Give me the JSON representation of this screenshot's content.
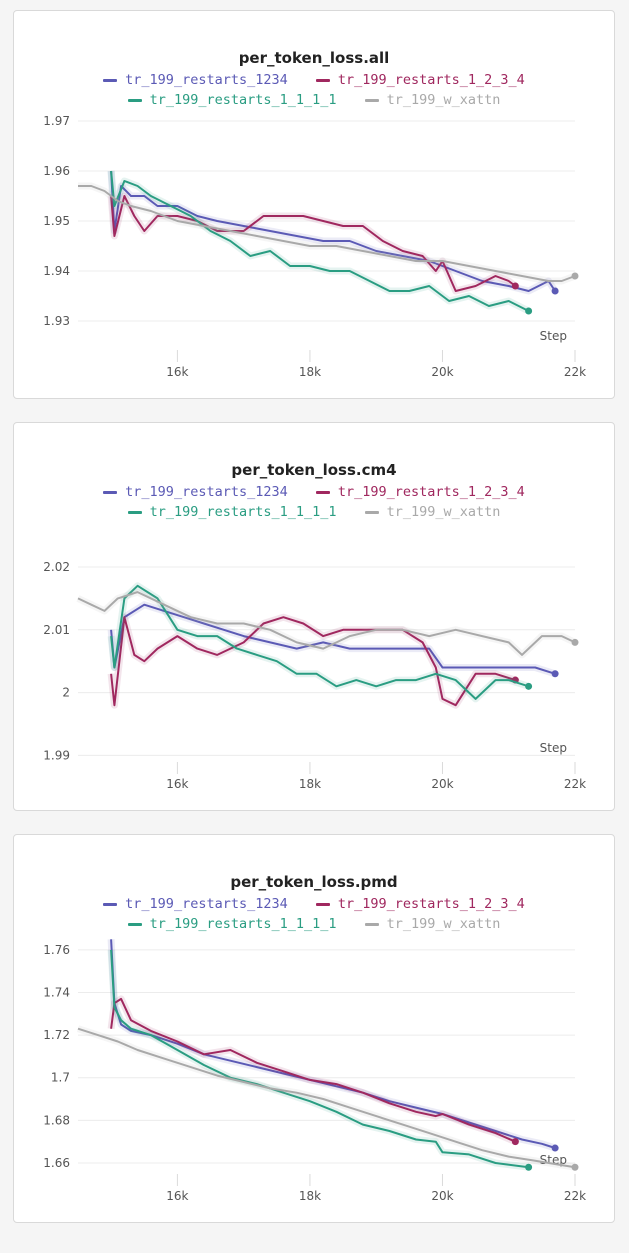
{
  "legend": [
    {
      "label": "tr_199_restarts_1234",
      "color": "#5b5ab5"
    },
    {
      "label": "tr_199_restarts_1_2_3_4",
      "color": "#a0285f"
    },
    {
      "label": "tr_199_restarts_1_1_1_1",
      "color": "#2a9d82"
    },
    {
      "label": "tr_199_w_xattn",
      "color": "#a9a9a9"
    }
  ],
  "x_axis_label": "Step",
  "panels": [
    {
      "title": "per_token_loss.all"
    },
    {
      "title": "per_token_loss.cm4"
    },
    {
      "title": "per_token_loss.pmd"
    }
  ],
  "chart_data": [
    {
      "type": "line",
      "title": "per_token_loss.all",
      "xlabel": "Step",
      "ylabel": "",
      "xlim": [
        14500,
        22000
      ],
      "ylim": [
        1.923,
        1.972
      ],
      "x_ticks": [
        16000,
        18000,
        20000,
        22000
      ],
      "x_tick_labels": [
        "16k",
        "18k",
        "20k",
        "22k"
      ],
      "y_ticks": [
        1.93,
        1.94,
        1.95,
        1.96,
        1.97
      ],
      "y_tick_labels": [
        "1.93",
        "1.94",
        "1.95",
        "1.96",
        "1.97"
      ],
      "grid": true,
      "legend_position": "top",
      "series": [
        {
          "name": "tr_199_restarts_1234",
          "color": "#5b5ab5",
          "x": [
            15000,
            15050,
            15150,
            15300,
            15500,
            15700,
            16000,
            16300,
            16600,
            17000,
            17400,
            17800,
            18200,
            18600,
            19000,
            19400,
            19800,
            20200,
            20600,
            21000,
            21300,
            21600,
            21700
          ],
          "y": [
            1.96,
            1.948,
            1.957,
            1.955,
            1.955,
            1.953,
            1.953,
            1.951,
            1.95,
            1.949,
            1.948,
            1.947,
            1.946,
            1.946,
            1.944,
            1.943,
            1.942,
            1.94,
            1.938,
            1.937,
            1.936,
            1.938,
            1.936
          ]
        },
        {
          "name": "tr_199_restarts_1_2_3_4",
          "color": "#a0285f",
          "x": [
            15000,
            15050,
            15200,
            15350,
            15500,
            15700,
            16000,
            16300,
            16600,
            17000,
            17300,
            17600,
            17900,
            18200,
            18500,
            18800,
            19100,
            19400,
            19700,
            19900,
            20000,
            20200,
            20500,
            20800,
            21000,
            21100
          ],
          "y": [
            1.955,
            1.947,
            1.955,
            1.951,
            1.948,
            1.951,
            1.951,
            1.95,
            1.948,
            1.948,
            1.951,
            1.951,
            1.951,
            1.95,
            1.949,
            1.949,
            1.946,
            1.944,
            1.943,
            1.94,
            1.942,
            1.936,
            1.937,
            1.939,
            1.938,
            1.937
          ]
        },
        {
          "name": "tr_199_restarts_1_1_1_1",
          "color": "#2a9d82",
          "x": [
            15000,
            15050,
            15200,
            15400,
            15600,
            15900,
            16200,
            16500,
            16800,
            17100,
            17400,
            17700,
            18000,
            18300,
            18600,
            18900,
            19200,
            19500,
            19800,
            20100,
            20400,
            20700,
            21000,
            21300
          ],
          "y": [
            1.96,
            1.953,
            1.958,
            1.957,
            1.955,
            1.953,
            1.951,
            1.948,
            1.946,
            1.943,
            1.944,
            1.941,
            1.941,
            1.94,
            1.94,
            1.938,
            1.936,
            1.936,
            1.937,
            1.934,
            1.935,
            1.933,
            1.934,
            1.932
          ]
        },
        {
          "name": "tr_199_w_xattn",
          "color": "#a9a9a9",
          "x": [
            14500,
            14700,
            14900,
            15100,
            15300,
            15600,
            16000,
            16400,
            16800,
            17200,
            17600,
            18000,
            18400,
            18800,
            19200,
            19600,
            20000,
            20400,
            20800,
            21200,
            21600,
            21800,
            22000
          ],
          "y": [
            1.957,
            1.957,
            1.956,
            1.954,
            1.953,
            1.952,
            1.95,
            1.949,
            1.948,
            1.947,
            1.946,
            1.945,
            1.945,
            1.944,
            1.943,
            1.942,
            1.942,
            1.941,
            1.94,
            1.939,
            1.938,
            1.938,
            1.939
          ]
        }
      ]
    },
    {
      "type": "line",
      "title": "per_token_loss.cm4",
      "xlabel": "Step",
      "ylabel": "",
      "xlim": [
        14500,
        22000
      ],
      "ylim": [
        1.988,
        2.027
      ],
      "x_ticks": [
        16000,
        18000,
        20000,
        22000
      ],
      "x_tick_labels": [
        "16k",
        "18k",
        "20k",
        "22k"
      ],
      "y_ticks": [
        1.99,
        2.0,
        2.01,
        2.02
      ],
      "y_tick_labels": [
        "1.99",
        "2",
        "2.01",
        "2.02"
      ],
      "grid": true,
      "legend_position": "top",
      "series": [
        {
          "name": "tr_199_restarts_1234",
          "color": "#5b5ab5",
          "x": [
            15000,
            15050,
            15200,
            15500,
            15800,
            16100,
            16400,
            16700,
            17000,
            17400,
            17800,
            18200,
            18600,
            19000,
            19400,
            19800,
            20000,
            20300,
            20600,
            21000,
            21400,
            21700
          ],
          "y": [
            2.01,
            2.004,
            2.012,
            2.014,
            2.013,
            2.012,
            2.011,
            2.01,
            2.009,
            2.008,
            2.007,
            2.008,
            2.007,
            2.007,
            2.007,
            2.007,
            2.004,
            2.004,
            2.004,
            2.004,
            2.004,
            2.003
          ]
        },
        {
          "name": "tr_199_restarts_1_2_3_4",
          "color": "#a0285f",
          "x": [
            15000,
            15050,
            15200,
            15350,
            15500,
            15700,
            16000,
            16300,
            16600,
            17000,
            17300,
            17600,
            17900,
            18200,
            18500,
            18800,
            19100,
            19400,
            19700,
            19900,
            20000,
            20200,
            20500,
            20800,
            21100
          ],
          "y": [
            2.003,
            1.998,
            2.012,
            2.006,
            2.005,
            2.007,
            2.009,
            2.007,
            2.006,
            2.008,
            2.011,
            2.012,
            2.011,
            2.009,
            2.01,
            2.01,
            2.01,
            2.01,
            2.008,
            2.004,
            1.999,
            1.998,
            2.003,
            2.003,
            2.002
          ]
        },
        {
          "name": "tr_199_restarts_1_1_1_1",
          "color": "#2a9d82",
          "x": [
            15000,
            15050,
            15200,
            15400,
            15700,
            16000,
            16300,
            16600,
            16900,
            17200,
            17500,
            17800,
            18100,
            18400,
            18700,
            19000,
            19300,
            19600,
            19900,
            20200,
            20500,
            20800,
            21000,
            21300
          ],
          "y": [
            2.009,
            2.004,
            2.015,
            2.017,
            2.015,
            2.01,
            2.009,
            2.009,
            2.007,
            2.006,
            2.005,
            2.003,
            2.003,
            2.001,
            2.002,
            2.001,
            2.002,
            2.002,
            2.003,
            2.002,
            1.999,
            2.002,
            2.002,
            2.001
          ]
        },
        {
          "name": "tr_199_w_xattn",
          "color": "#a9a9a9",
          "x": [
            14500,
            14700,
            14900,
            15100,
            15400,
            15800,
            16200,
            16600,
            17000,
            17400,
            17800,
            18200,
            18600,
            19000,
            19400,
            19800,
            20200,
            20600,
            21000,
            21200,
            21500,
            21800,
            22000
          ],
          "y": [
            2.015,
            2.014,
            2.013,
            2.015,
            2.016,
            2.014,
            2.012,
            2.011,
            2.011,
            2.01,
            2.008,
            2.007,
            2.009,
            2.01,
            2.01,
            2.009,
            2.01,
            2.009,
            2.008,
            2.006,
            2.009,
            2.009,
            2.008
          ]
        }
      ]
    },
    {
      "type": "line",
      "title": "per_token_loss.pmd",
      "xlabel": "Step",
      "ylabel": "",
      "xlim": [
        14500,
        22000
      ],
      "ylim": [
        1.652,
        1.767
      ],
      "x_ticks": [
        16000,
        18000,
        20000,
        22000
      ],
      "x_tick_labels": [
        "16k",
        "18k",
        "20k",
        "22k"
      ],
      "y_ticks": [
        1.66,
        1.68,
        1.7,
        1.72,
        1.74,
        1.76
      ],
      "y_tick_labels": [
        "1.66",
        "1.68",
        "1.7",
        "1.72",
        "1.74",
        "1.76"
      ],
      "grid": true,
      "legend_position": "top",
      "series": [
        {
          "name": "tr_199_restarts_1234",
          "color": "#5b5ab5",
          "x": [
            15000,
            15050,
            15150,
            15300,
            15600,
            16000,
            16400,
            16800,
            17200,
            17600,
            18000,
            18400,
            18800,
            19200,
            19600,
            20000,
            20400,
            20800,
            21200,
            21500,
            21700
          ],
          "y": [
            1.765,
            1.735,
            1.725,
            1.722,
            1.72,
            1.716,
            1.711,
            1.708,
            1.705,
            1.702,
            1.699,
            1.696,
            1.693,
            1.689,
            1.686,
            1.683,
            1.679,
            1.675,
            1.671,
            1.669,
            1.667
          ]
        },
        {
          "name": "tr_199_restarts_1_2_3_4",
          "color": "#a0285f",
          "x": [
            15000,
            15050,
            15150,
            15300,
            15600,
            16000,
            16400,
            16800,
            17200,
            17600,
            18000,
            18400,
            18800,
            19200,
            19600,
            19900,
            20000,
            20400,
            20800,
            21100
          ],
          "y": [
            1.723,
            1.735,
            1.737,
            1.727,
            1.722,
            1.717,
            1.711,
            1.713,
            1.707,
            1.703,
            1.699,
            1.697,
            1.693,
            1.688,
            1.684,
            1.682,
            1.683,
            1.678,
            1.674,
            1.67
          ]
        },
        {
          "name": "tr_199_restarts_1_1_1_1",
          "color": "#2a9d82",
          "x": [
            15000,
            15050,
            15150,
            15300,
            15600,
            16000,
            16400,
            16800,
            17200,
            17600,
            18000,
            18400,
            18800,
            19200,
            19600,
            19900,
            20000,
            20400,
            20800,
            21300
          ],
          "y": [
            1.76,
            1.733,
            1.727,
            1.723,
            1.72,
            1.713,
            1.706,
            1.7,
            1.697,
            1.693,
            1.689,
            1.684,
            1.678,
            1.675,
            1.671,
            1.67,
            1.665,
            1.664,
            1.66,
            1.658
          ]
        },
        {
          "name": "tr_199_w_xattn",
          "color": "#a9a9a9",
          "x": [
            14500,
            14800,
            15100,
            15400,
            15800,
            16200,
            16600,
            17000,
            17400,
            17800,
            18200,
            18600,
            19000,
            19400,
            19800,
            20200,
            20600,
            21000,
            21400,
            21800,
            22000
          ],
          "y": [
            1.723,
            1.72,
            1.717,
            1.713,
            1.709,
            1.705,
            1.701,
            1.698,
            1.695,
            1.693,
            1.69,
            1.686,
            1.682,
            1.678,
            1.674,
            1.67,
            1.666,
            1.663,
            1.661,
            1.659,
            1.658
          ]
        }
      ]
    }
  ]
}
